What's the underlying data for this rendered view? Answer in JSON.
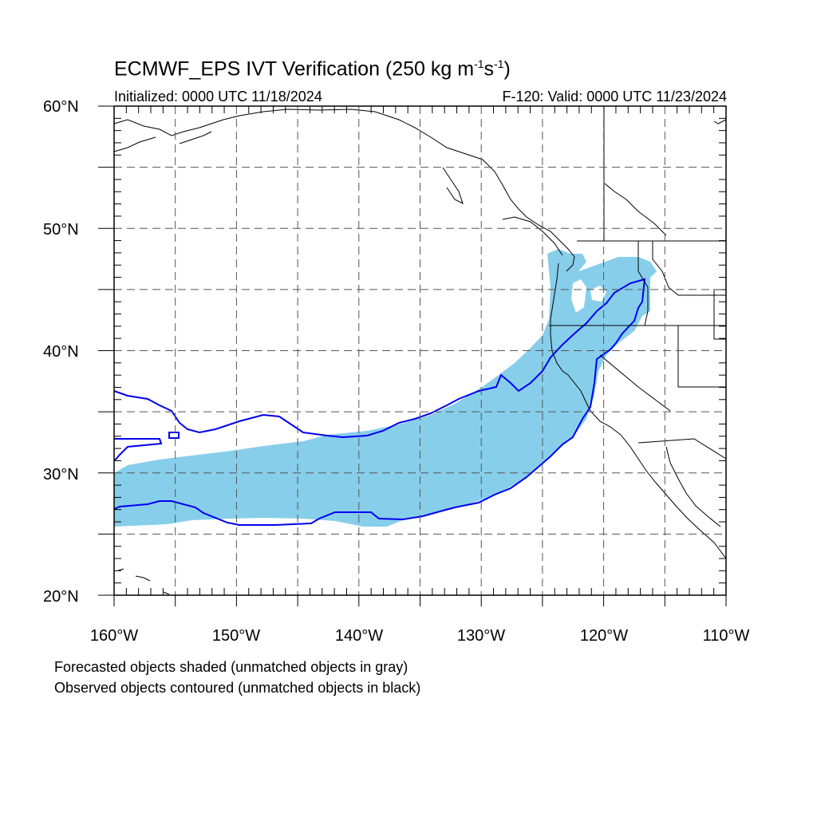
{
  "title": {
    "main": "ECMWF_EPS IVT Verification (250 kg m",
    "sup1": "-1",
    "mid": "s",
    "sup2": "-1",
    "end": ")"
  },
  "subtitle": {
    "left": "Initialized: 0000 UTC 11/18/2024",
    "right": "F-120: Valid: 0000 UTC 11/23/2024"
  },
  "lat_labels": [
    "60°N",
    "50°N",
    "40°N",
    "30°N",
    "20°N"
  ],
  "lon_labels": [
    "160°W",
    "150°W",
    "140°W",
    "130°W",
    "120°W",
    "110°W"
  ],
  "footer": {
    "line1": "Forecasted objects shaded (unmatched objects in gray)",
    "line2": "Observed objects contoured (unmatched objects in black)"
  },
  "colors": {
    "forecast_fill": "#87CEEB",
    "observed_contour": "#0000EE",
    "grid": "#555555",
    "coast": "#000000"
  },
  "map": {
    "lon_range": [
      -160,
      -110
    ],
    "lat_range": [
      20,
      60
    ],
    "grid_step_deg": 5
  }
}
